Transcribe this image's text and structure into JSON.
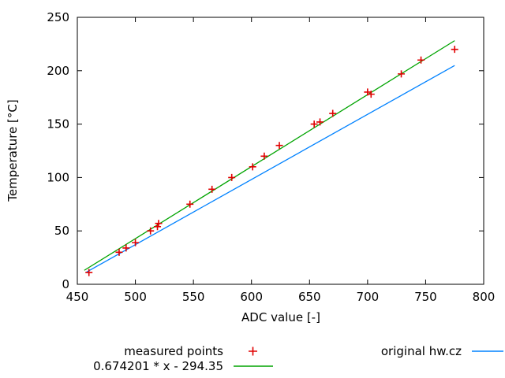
{
  "chart_data": {
    "type": "scatter",
    "title": "",
    "xlabel": "ADC value [-]",
    "ylabel": "Temperature [°C]",
    "xlim": [
      450,
      800
    ],
    "ylim": [
      0,
      250
    ],
    "xticks": [
      450,
      500,
      550,
      600,
      650,
      700,
      750,
      800
    ],
    "yticks": [
      0,
      50,
      100,
      150,
      200,
      250
    ],
    "grid": false,
    "legend_position": "below-plot, two columns",
    "axis_color": "#000000",
    "series": [
      {
        "name": "measured points",
        "type": "scatter",
        "marker": "plus",
        "color": "#e00000",
        "points": [
          [
            460,
            11
          ],
          [
            486,
            30
          ],
          [
            492,
            34
          ],
          [
            500,
            39
          ],
          [
            513,
            50
          ],
          [
            519,
            54
          ],
          [
            520,
            57
          ],
          [
            547,
            75
          ],
          [
            566,
            89
          ],
          [
            583,
            100
          ],
          [
            601,
            110
          ],
          [
            611,
            120
          ],
          [
            624,
            130
          ],
          [
            654,
            150
          ],
          [
            659,
            152
          ],
          [
            670,
            160
          ],
          [
            700,
            180
          ],
          [
            703,
            178
          ],
          [
            729,
            197
          ],
          [
            746,
            210
          ],
          [
            775,
            220
          ]
        ]
      },
      {
        "name": "0.674201 * x - 294.35",
        "type": "line",
        "color": "#00a400",
        "slope": 0.674201,
        "intercept": -294.35,
        "x_range": [
          456,
          775
        ]
      },
      {
        "name": "original hw.cz",
        "type": "line",
        "color": "#0082ff",
        "points": [
          [
            458,
            11.5
          ],
          [
            775,
            204.9
          ]
        ]
      }
    ]
  }
}
